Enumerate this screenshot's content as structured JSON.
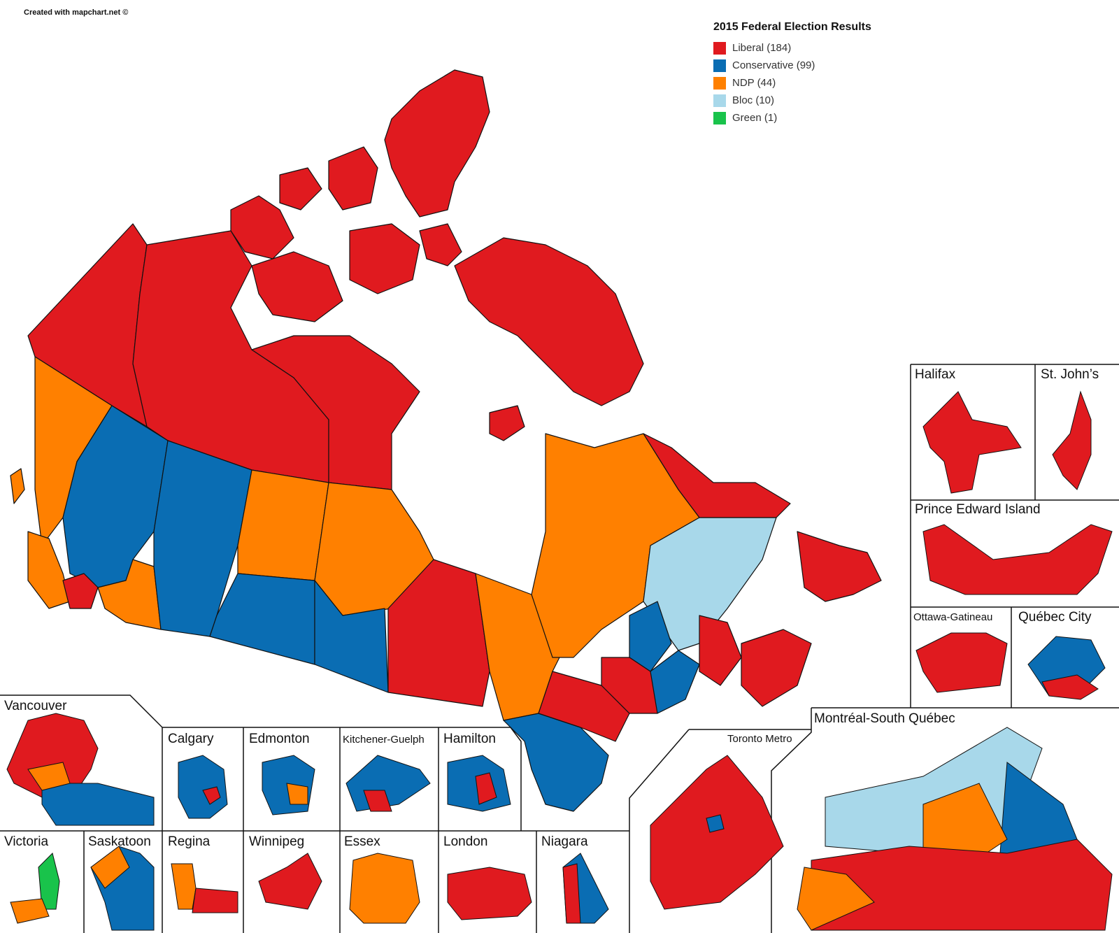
{
  "credit": "Created with mapchart.net ©",
  "legend": {
    "title": "2015 Federal Election Results",
    "items": [
      {
        "key": "liberal",
        "label": "Liberal (184)",
        "color": "#e01a1f"
      },
      {
        "key": "conservative",
        "label": "Conservative (99)",
        "color": "#0a6db3"
      },
      {
        "key": "ndp",
        "label": "NDP (44)",
        "color": "#ff8000"
      },
      {
        "key": "bloc",
        "label": "Bloc (10)",
        "color": "#a8d8ea"
      },
      {
        "key": "green",
        "label": "Green (1)",
        "color": "#19c34b"
      }
    ]
  },
  "insets": {
    "halifax": "Halifax",
    "st_johns": "St. John’s",
    "pei": "Prince Edward Island",
    "ottawa_gatineau": "Ottawa-Gatineau",
    "quebec_city": "Québec City",
    "montreal": "Montréal-South Québec",
    "toronto": "Toronto Metro",
    "vancouver": "Vancouver",
    "calgary": "Calgary",
    "edmonton": "Edmonton",
    "kitchener": "Kitchener-Guelph",
    "hamilton": "Hamilton",
    "victoria": "Victoria",
    "saskatoon": "Saskatoon",
    "regina": "Regina",
    "winnipeg": "Winnipeg",
    "essex": "Essex",
    "london": "London",
    "niagara": "Niagara"
  }
}
